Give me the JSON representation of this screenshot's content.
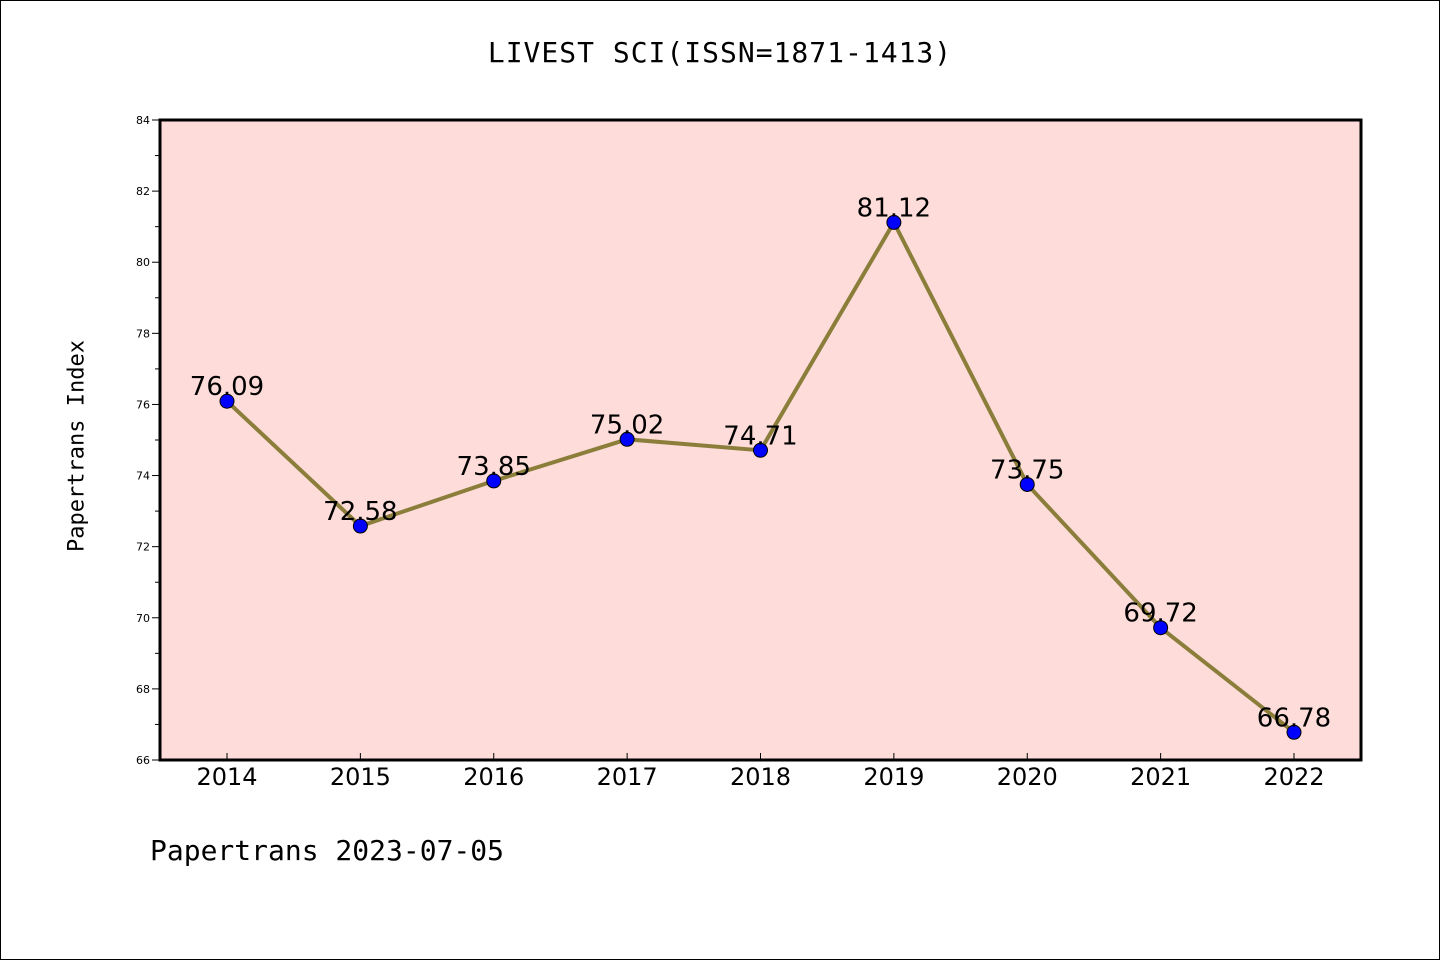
{
  "chart_data": {
    "type": "line",
    "title": "LIVEST SCI(ISSN=1871-1413)",
    "xlabel": "",
    "ylabel": "Papertrans Index",
    "categories": [
      "2014",
      "2015",
      "2016",
      "2017",
      "2018",
      "2019",
      "2020",
      "2021",
      "2022"
    ],
    "series": [
      {
        "values": [
          76.09,
          72.58,
          73.85,
          75.02,
          74.71,
          81.12,
          73.75,
          69.72,
          66.78
        ],
        "line_color": "#8b7d3a",
        "marker_color": "#0000ff"
      }
    ],
    "data_labels": [
      "76.09",
      "72.58",
      "73.85",
      "75.02",
      "74.71",
      "81.12",
      "73.75",
      "69.72",
      "66.78"
    ],
    "ylim": [
      66,
      84
    ],
    "yticks": [
      "66",
      "68",
      "70",
      "72",
      "74",
      "76",
      "78",
      "80",
      "82",
      "84"
    ],
    "plot_background": "#fddcd9",
    "grid": false,
    "legend": "none"
  },
  "footer": {
    "note": "Papertrans 2023-07-05"
  }
}
